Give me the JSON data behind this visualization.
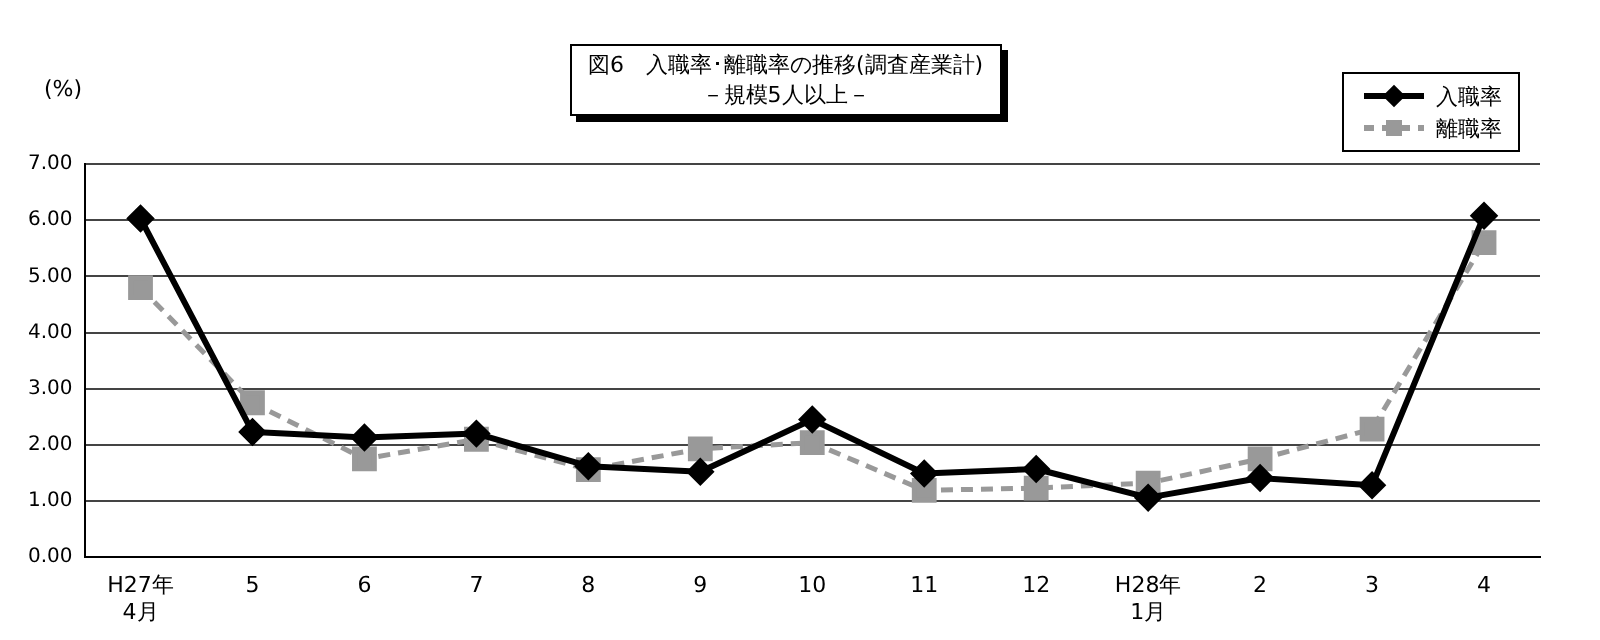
{
  "chart_data": {
    "type": "line",
    "title": "図6　入職率･離職率の推移(調査産業計)",
    "subtitle": "－規模5人以上－",
    "ylabel": "(%)",
    "categories": [
      "H27年\n4月",
      "5",
      "6",
      "7",
      "8",
      "9",
      "10",
      "11",
      "12",
      "H28年\n1月",
      "2",
      "3",
      "4"
    ],
    "series": [
      {
        "name": "入職率",
        "color": "#000000",
        "marker": "diamond",
        "line_style": "solid",
        "values": [
          6.03,
          2.23,
          2.13,
          2.2,
          1.62,
          1.52,
          2.45,
          1.49,
          1.57,
          1.06,
          1.41,
          1.28,
          6.08
        ]
      },
      {
        "name": "離職率",
        "color": "#999999",
        "marker": "square",
        "line_style": "dashed",
        "values": [
          4.8,
          2.75,
          1.75,
          2.1,
          1.56,
          1.93,
          2.04,
          1.19,
          1.23,
          1.32,
          1.75,
          2.28,
          5.6
        ]
      }
    ],
    "ylim": [
      0,
      7
    ],
    "yticks": [
      {
        "value": 0,
        "label": "0.00"
      },
      {
        "value": 1,
        "label": "1.00"
      },
      {
        "value": 2,
        "label": "2.00"
      },
      {
        "value": 3,
        "label": "3.00"
      },
      {
        "value": 4,
        "label": "4.00"
      },
      {
        "value": 5,
        "label": "5.00"
      },
      {
        "value": 6,
        "label": "6.00"
      },
      {
        "value": 7,
        "label": "7.00"
      }
    ],
    "grid": "y",
    "legend": "top right"
  }
}
